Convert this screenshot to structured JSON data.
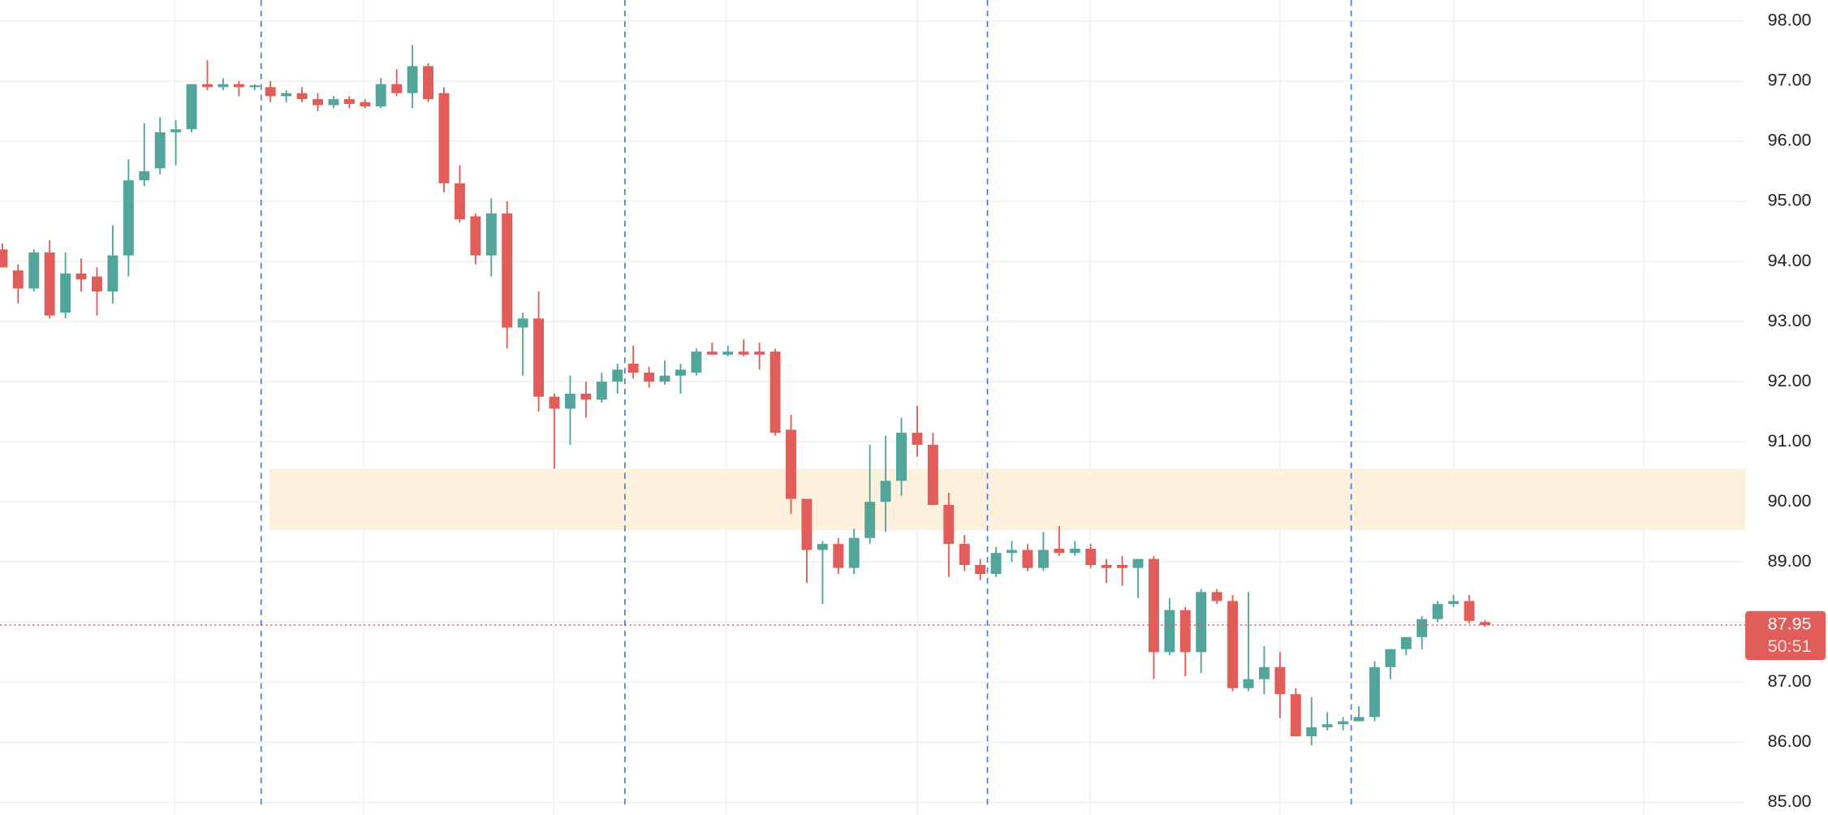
{
  "chart_data": {
    "type": "candlestick",
    "up_color": "#52a59b",
    "down_color": "#e05d5a",
    "ylim": [
      84.79,
      98.35
    ],
    "yticks": [
      {
        "value": 85,
        "label": "85.00"
      },
      {
        "value": 86,
        "label": "86.00"
      },
      {
        "value": 87,
        "label": "87.00"
      },
      {
        "value": 88,
        "label": "88.00"
      },
      {
        "value": 89,
        "label": "89.00"
      },
      {
        "value": 90,
        "label": "90.00"
      },
      {
        "value": 91,
        "label": "91.00"
      },
      {
        "value": 92,
        "label": "92.00"
      },
      {
        "value": 93,
        "label": "93.00"
      },
      {
        "value": 94,
        "label": "94.00"
      },
      {
        "value": 95,
        "label": "95.00"
      },
      {
        "value": 96,
        "label": "96.00"
      },
      {
        "value": 97,
        "label": "97.00"
      },
      {
        "value": 98,
        "label": "98.00"
      }
    ],
    "grid": true,
    "zone": {
      "from": 89.53,
      "to": 90.55,
      "color": "#fdf0dc"
    },
    "last_price": {
      "value": 87.95,
      "label": "87.95",
      "countdown": "50:51"
    },
    "open": [
      94.2,
      93.85,
      93.55,
      94.15,
      93.15,
      93.8,
      93.75,
      93.5,
      94.1,
      95.35,
      95.55,
      96.15,
      96.2,
      96.95,
      96.9,
      96.95,
      96.9,
      96.9,
      96.75,
      96.8,
      96.7,
      96.6,
      96.7,
      96.65,
      96.58,
      96.95,
      96.8,
      97.25,
      96.8,
      95.3,
      94.75,
      94.1,
      94.8,
      92.9,
      93.05,
      91.75,
      91.55,
      91.8,
      91.7,
      92.0,
      92.3,
      92.15,
      92.0,
      92.1,
      92.15,
      92.5,
      92.45,
      92.5,
      92.5,
      92.5,
      91.2,
      90.05,
      89.2,
      89.3,
      88.9,
      89.4,
      90.0,
      90.35,
      91.15,
      90.95,
      89.95,
      89.3,
      88.95,
      88.8,
      89.15,
      89.2,
      88.9,
      89.22,
      89.15,
      89.22,
      88.95,
      88.95,
      88.9,
      89.05,
      87.5,
      88.2,
      87.5,
      88.5,
      88.35,
      86.9,
      87.05,
      87.25,
      86.8,
      86.1,
      86.25,
      86.3,
      86.35,
      86.42,
      87.25,
      87.55,
      87.75,
      88.05,
      88.3,
      88.35,
      88.0
    ],
    "high": [
      94.3,
      93.95,
      94.2,
      94.35,
      94.15,
      94.05,
      93.9,
      94.6,
      95.7,
      96.3,
      96.4,
      96.35,
      96.95,
      97.35,
      97.05,
      97.0,
      96.95,
      97.0,
      96.85,
      96.9,
      96.8,
      96.75,
      96.75,
      96.7,
      97.05,
      97.2,
      97.6,
      97.3,
      96.9,
      95.6,
      94.8,
      95.05,
      95.0,
      93.15,
      93.5,
      91.8,
      92.1,
      92.0,
      92.15,
      92.3,
      92.6,
      92.25,
      92.35,
      92.3,
      92.55,
      92.65,
      92.6,
      92.7,
      92.65,
      92.55,
      91.45,
      90.05,
      89.35,
      89.4,
      89.55,
      90.95,
      91.1,
      91.4,
      91.6,
      91.15,
      90.15,
      89.45,
      89.05,
      89.25,
      89.35,
      89.3,
      89.5,
      89.6,
      89.35,
      89.3,
      89.05,
      89.1,
      89.05,
      89.1,
      88.4,
      88.25,
      88.55,
      88.55,
      88.45,
      88.5,
      87.6,
      87.5,
      86.9,
      86.75,
      86.5,
      86.42,
      86.6,
      87.35,
      87.55,
      87.75,
      88.1,
      88.35,
      88.45,
      88.45,
      88.03
    ],
    "low": [
      93.9,
      93.3,
      93.5,
      93.05,
      93.05,
      93.5,
      93.1,
      93.3,
      93.75,
      95.25,
      95.45,
      95.6,
      96.15,
      96.85,
      96.85,
      96.75,
      96.85,
      96.65,
      96.65,
      96.65,
      96.5,
      96.55,
      96.55,
      96.55,
      96.55,
      96.75,
      96.55,
      96.65,
      95.15,
      94.65,
      93.95,
      93.75,
      92.55,
      92.1,
      91.5,
      90.55,
      90.95,
      91.4,
      91.65,
      91.8,
      92.05,
      91.9,
      91.95,
      91.8,
      92.1,
      92.45,
      92.42,
      92.42,
      92.2,
      91.1,
      89.8,
      88.65,
      88.3,
      88.8,
      88.8,
      89.3,
      89.5,
      90.1,
      90.75,
      89.95,
      88.75,
      88.85,
      88.7,
      88.75,
      89.0,
      88.85,
      88.85,
      89.1,
      89.1,
      88.9,
      88.65,
      88.6,
      88.4,
      87.05,
      87.45,
      87.1,
      87.15,
      88.3,
      86.85,
      86.85,
      86.8,
      86.4,
      86.1,
      85.95,
      86.2,
      86.2,
      86.35,
      86.35,
      87.05,
      87.45,
      87.55,
      88.0,
      88.25,
      87.98,
      87.92
    ],
    "close": [
      93.9,
      93.55,
      94.15,
      93.1,
      93.8,
      93.7,
      93.5,
      94.1,
      95.35,
      95.5,
      96.15,
      96.2,
      96.95,
      96.9,
      96.95,
      96.9,
      96.93,
      96.75,
      96.8,
      96.7,
      96.6,
      96.7,
      96.62,
      96.58,
      96.95,
      96.8,
      97.25,
      96.7,
      95.3,
      94.7,
      94.1,
      94.8,
      92.9,
      93.05,
      91.75,
      91.55,
      91.8,
      91.7,
      92.0,
      92.2,
      92.15,
      92.0,
      92.1,
      92.2,
      92.5,
      92.45,
      92.5,
      92.45,
      92.45,
      91.15,
      90.05,
      89.2,
      89.3,
      88.9,
      89.4,
      90.0,
      90.35,
      91.15,
      90.95,
      89.95,
      89.3,
      88.95,
      88.8,
      89.15,
      89.2,
      88.9,
      89.2,
      89.15,
      89.22,
      88.95,
      88.9,
      88.9,
      89.05,
      87.5,
      88.2,
      87.5,
      88.5,
      88.35,
      86.9,
      87.05,
      87.25,
      86.8,
      86.1,
      86.25,
      86.3,
      86.35,
      86.42,
      87.25,
      87.55,
      87.75,
      88.05,
      88.3,
      88.35,
      88.02,
      87.95
    ]
  }
}
